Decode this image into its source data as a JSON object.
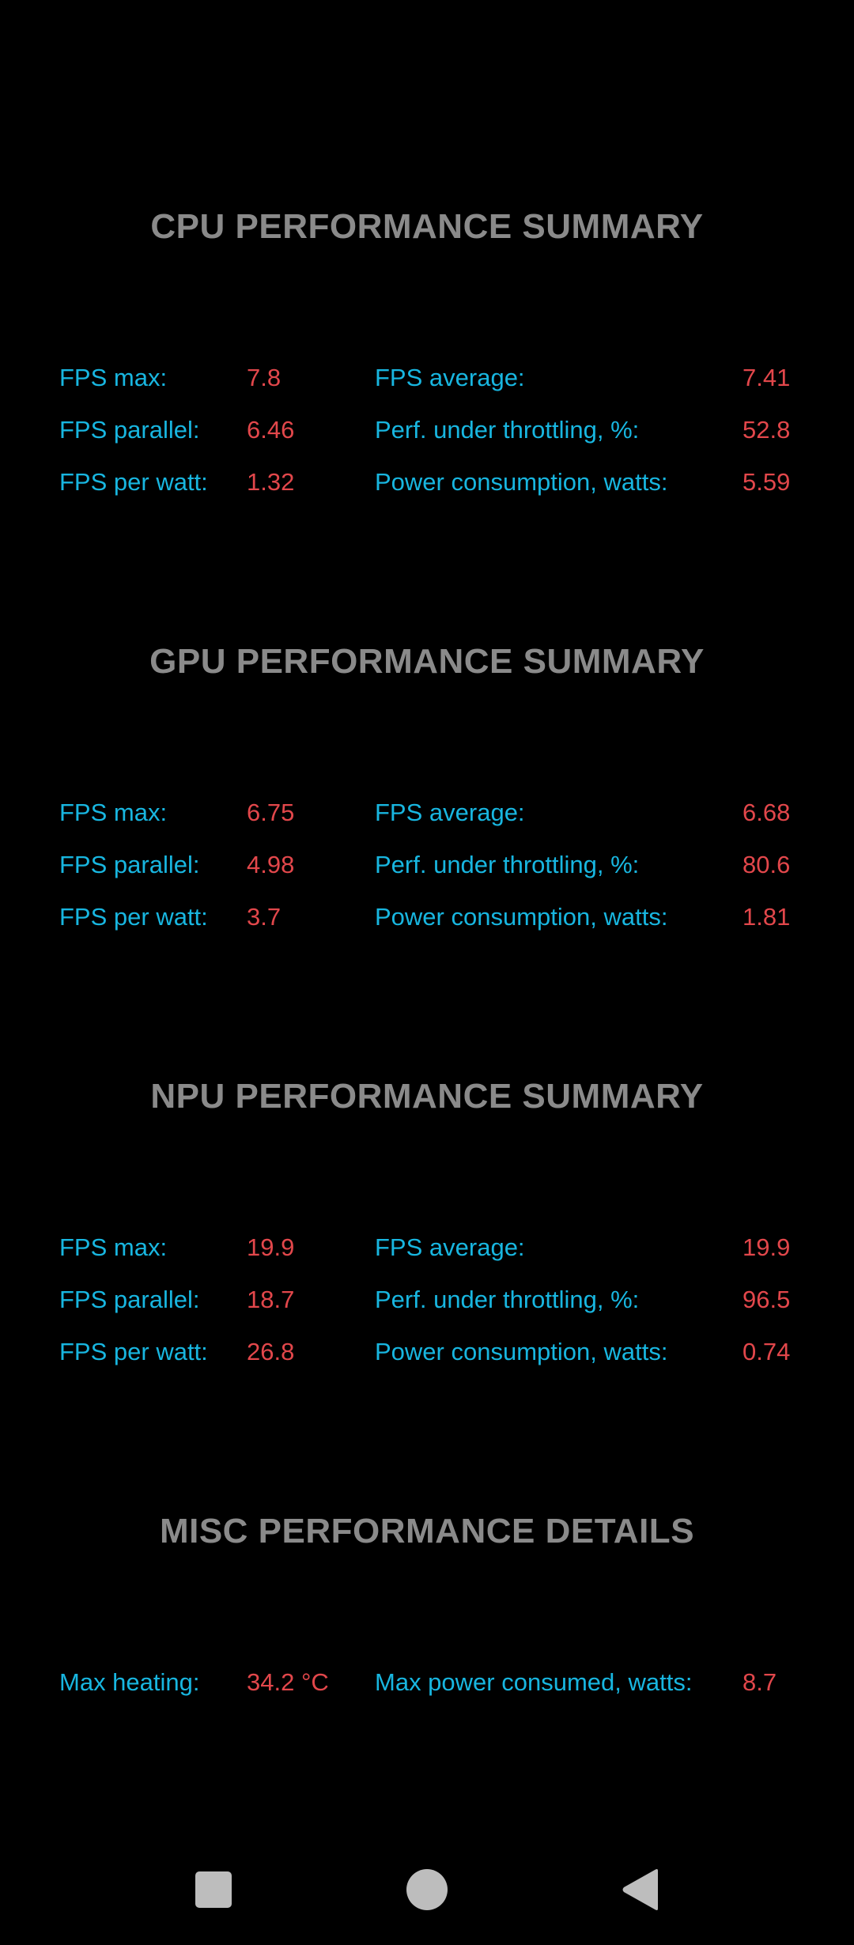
{
  "sections": {
    "cpu": {
      "title": "CPU PERFORMANCE SUMMARY",
      "rows": [
        {
          "label1": "FPS max:",
          "value1": "7.8",
          "label2": "FPS average:",
          "value2": "7.41"
        },
        {
          "label1": "FPS parallel:",
          "value1": "6.46",
          "label2": "Perf. under throttling, %:",
          "value2": "52.8"
        },
        {
          "label1": "FPS per watt:",
          "value1": "1.32",
          "label2": "Power consumption, watts:",
          "value2": "5.59"
        }
      ]
    },
    "gpu": {
      "title": "GPU PERFORMANCE SUMMARY",
      "rows": [
        {
          "label1": "FPS max:",
          "value1": "6.75",
          "label2": "FPS average:",
          "value2": "6.68"
        },
        {
          "label1": "FPS parallel:",
          "value1": "4.98",
          "label2": "Perf. under throttling, %:",
          "value2": "80.6"
        },
        {
          "label1": "FPS per watt:",
          "value1": "3.7",
          "label2": "Power consumption, watts:",
          "value2": "1.81"
        }
      ]
    },
    "npu": {
      "title": "NPU PERFORMANCE SUMMARY",
      "rows": [
        {
          "label1": "FPS max:",
          "value1": "19.9",
          "label2": "FPS average:",
          "value2": "19.9"
        },
        {
          "label1": "FPS parallel:",
          "value1": "18.7",
          "label2": "Perf. under throttling, %:",
          "value2": "96.5"
        },
        {
          "label1": "FPS per watt:",
          "value1": "26.8",
          "label2": "Power consumption, watts:",
          "value2": "0.74"
        }
      ]
    },
    "misc": {
      "title": "MISC PERFORMANCE DETAILS",
      "rows": [
        {
          "label1": "Max heating:",
          "value1": "34.2 °C",
          "label2": "Max power consumed, watts:",
          "value2": "8.7"
        }
      ]
    }
  },
  "navbar": {
    "recents_icon": "square-icon",
    "home_icon": "circle-icon",
    "back_icon": "triangle-back-icon"
  },
  "colors": {
    "background": "#000000",
    "title": "#8a8a8a",
    "label": "#18b6e0",
    "value": "#e2474b",
    "nav": "#bdbdbd"
  }
}
